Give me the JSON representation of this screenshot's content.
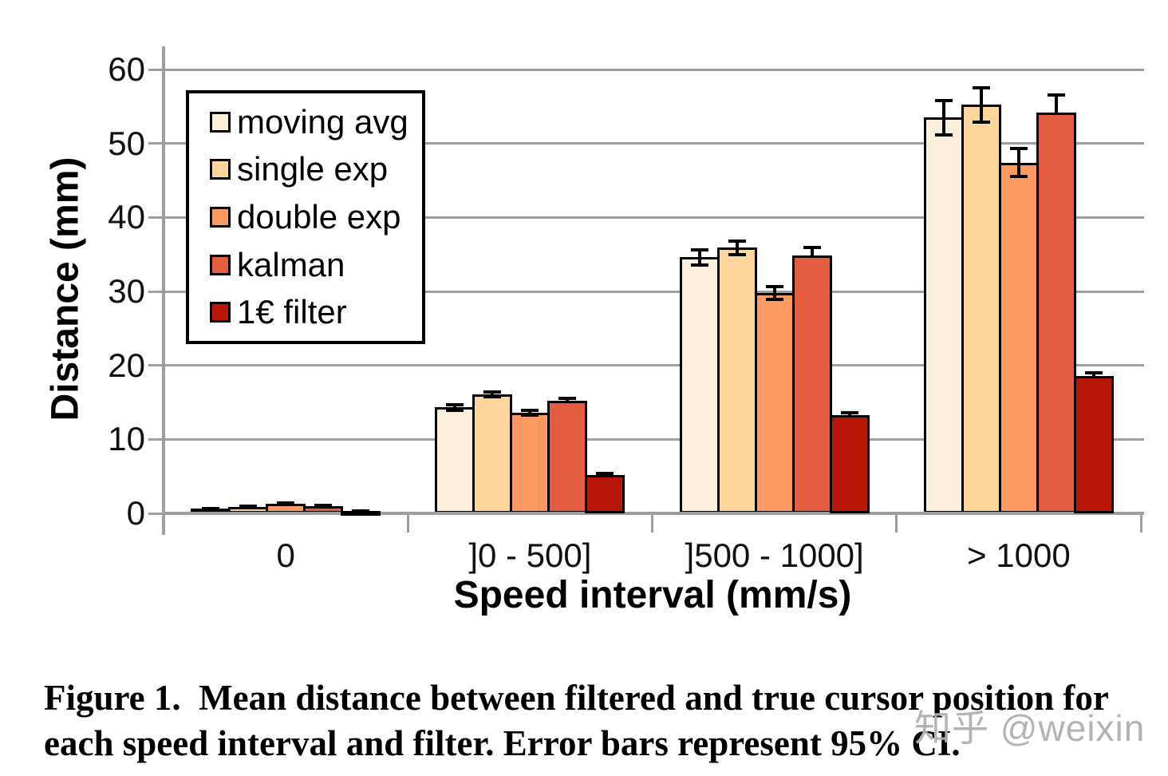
{
  "figure": {
    "caption_line1": "Figure 1.  Mean distance between filtered and true cursor position for",
    "caption_line2": "each speed interval and filter. Error bars represent 95% CI.",
    "watermark": "知乎 @weixin"
  },
  "chart_data": {
    "type": "bar",
    "title": "",
    "xlabel": "Speed interval (mm/s)",
    "ylabel": "Distance (mm)",
    "ylim": [
      0,
      60
    ],
    "yticks": [
      0,
      10,
      20,
      30,
      40,
      50,
      60
    ],
    "grid": true,
    "legend_position": "upper-left-inside",
    "error_bars": "95% CI",
    "categories": [
      "0",
      "]0 - 500]",
      "]500 - 1000]",
      "> 1000"
    ],
    "series": [
      {
        "name": "moving avg",
        "color": "#FCEFDC",
        "values": [
          0.6,
          14.3,
          34.6,
          53.5
        ],
        "ci95": [
          0.05,
          0.35,
          1.0,
          2.3
        ]
      },
      {
        "name": "single exp",
        "color": "#FCD69C",
        "values": [
          0.9,
          16.1,
          35.9,
          55.2
        ],
        "ci95": [
          0.05,
          0.3,
          0.9,
          2.3
        ]
      },
      {
        "name": "double exp",
        "color": "#FB9A63",
        "values": [
          1.3,
          13.6,
          29.8,
          47.4
        ],
        "ci95": [
          0.1,
          0.3,
          0.9,
          1.9
        ]
      },
      {
        "name": "kalman",
        "color": "#E55D40",
        "values": [
          1.0,
          15.2,
          34.9,
          54.2
        ],
        "ci95": [
          0.08,
          0.3,
          1.0,
          2.3
        ]
      },
      {
        "name": "1€ filter",
        "color": "#B71508",
        "values": [
          0.3,
          5.2,
          13.3,
          18.6
        ],
        "ci95": [
          0.03,
          0.15,
          0.3,
          0.4
        ]
      }
    ]
  },
  "style": {
    "grid_color": "#9E9E9E",
    "bar_border": "#000000",
    "background": "#FFFFFF",
    "watermark_color": "#AFAFAF"
  }
}
